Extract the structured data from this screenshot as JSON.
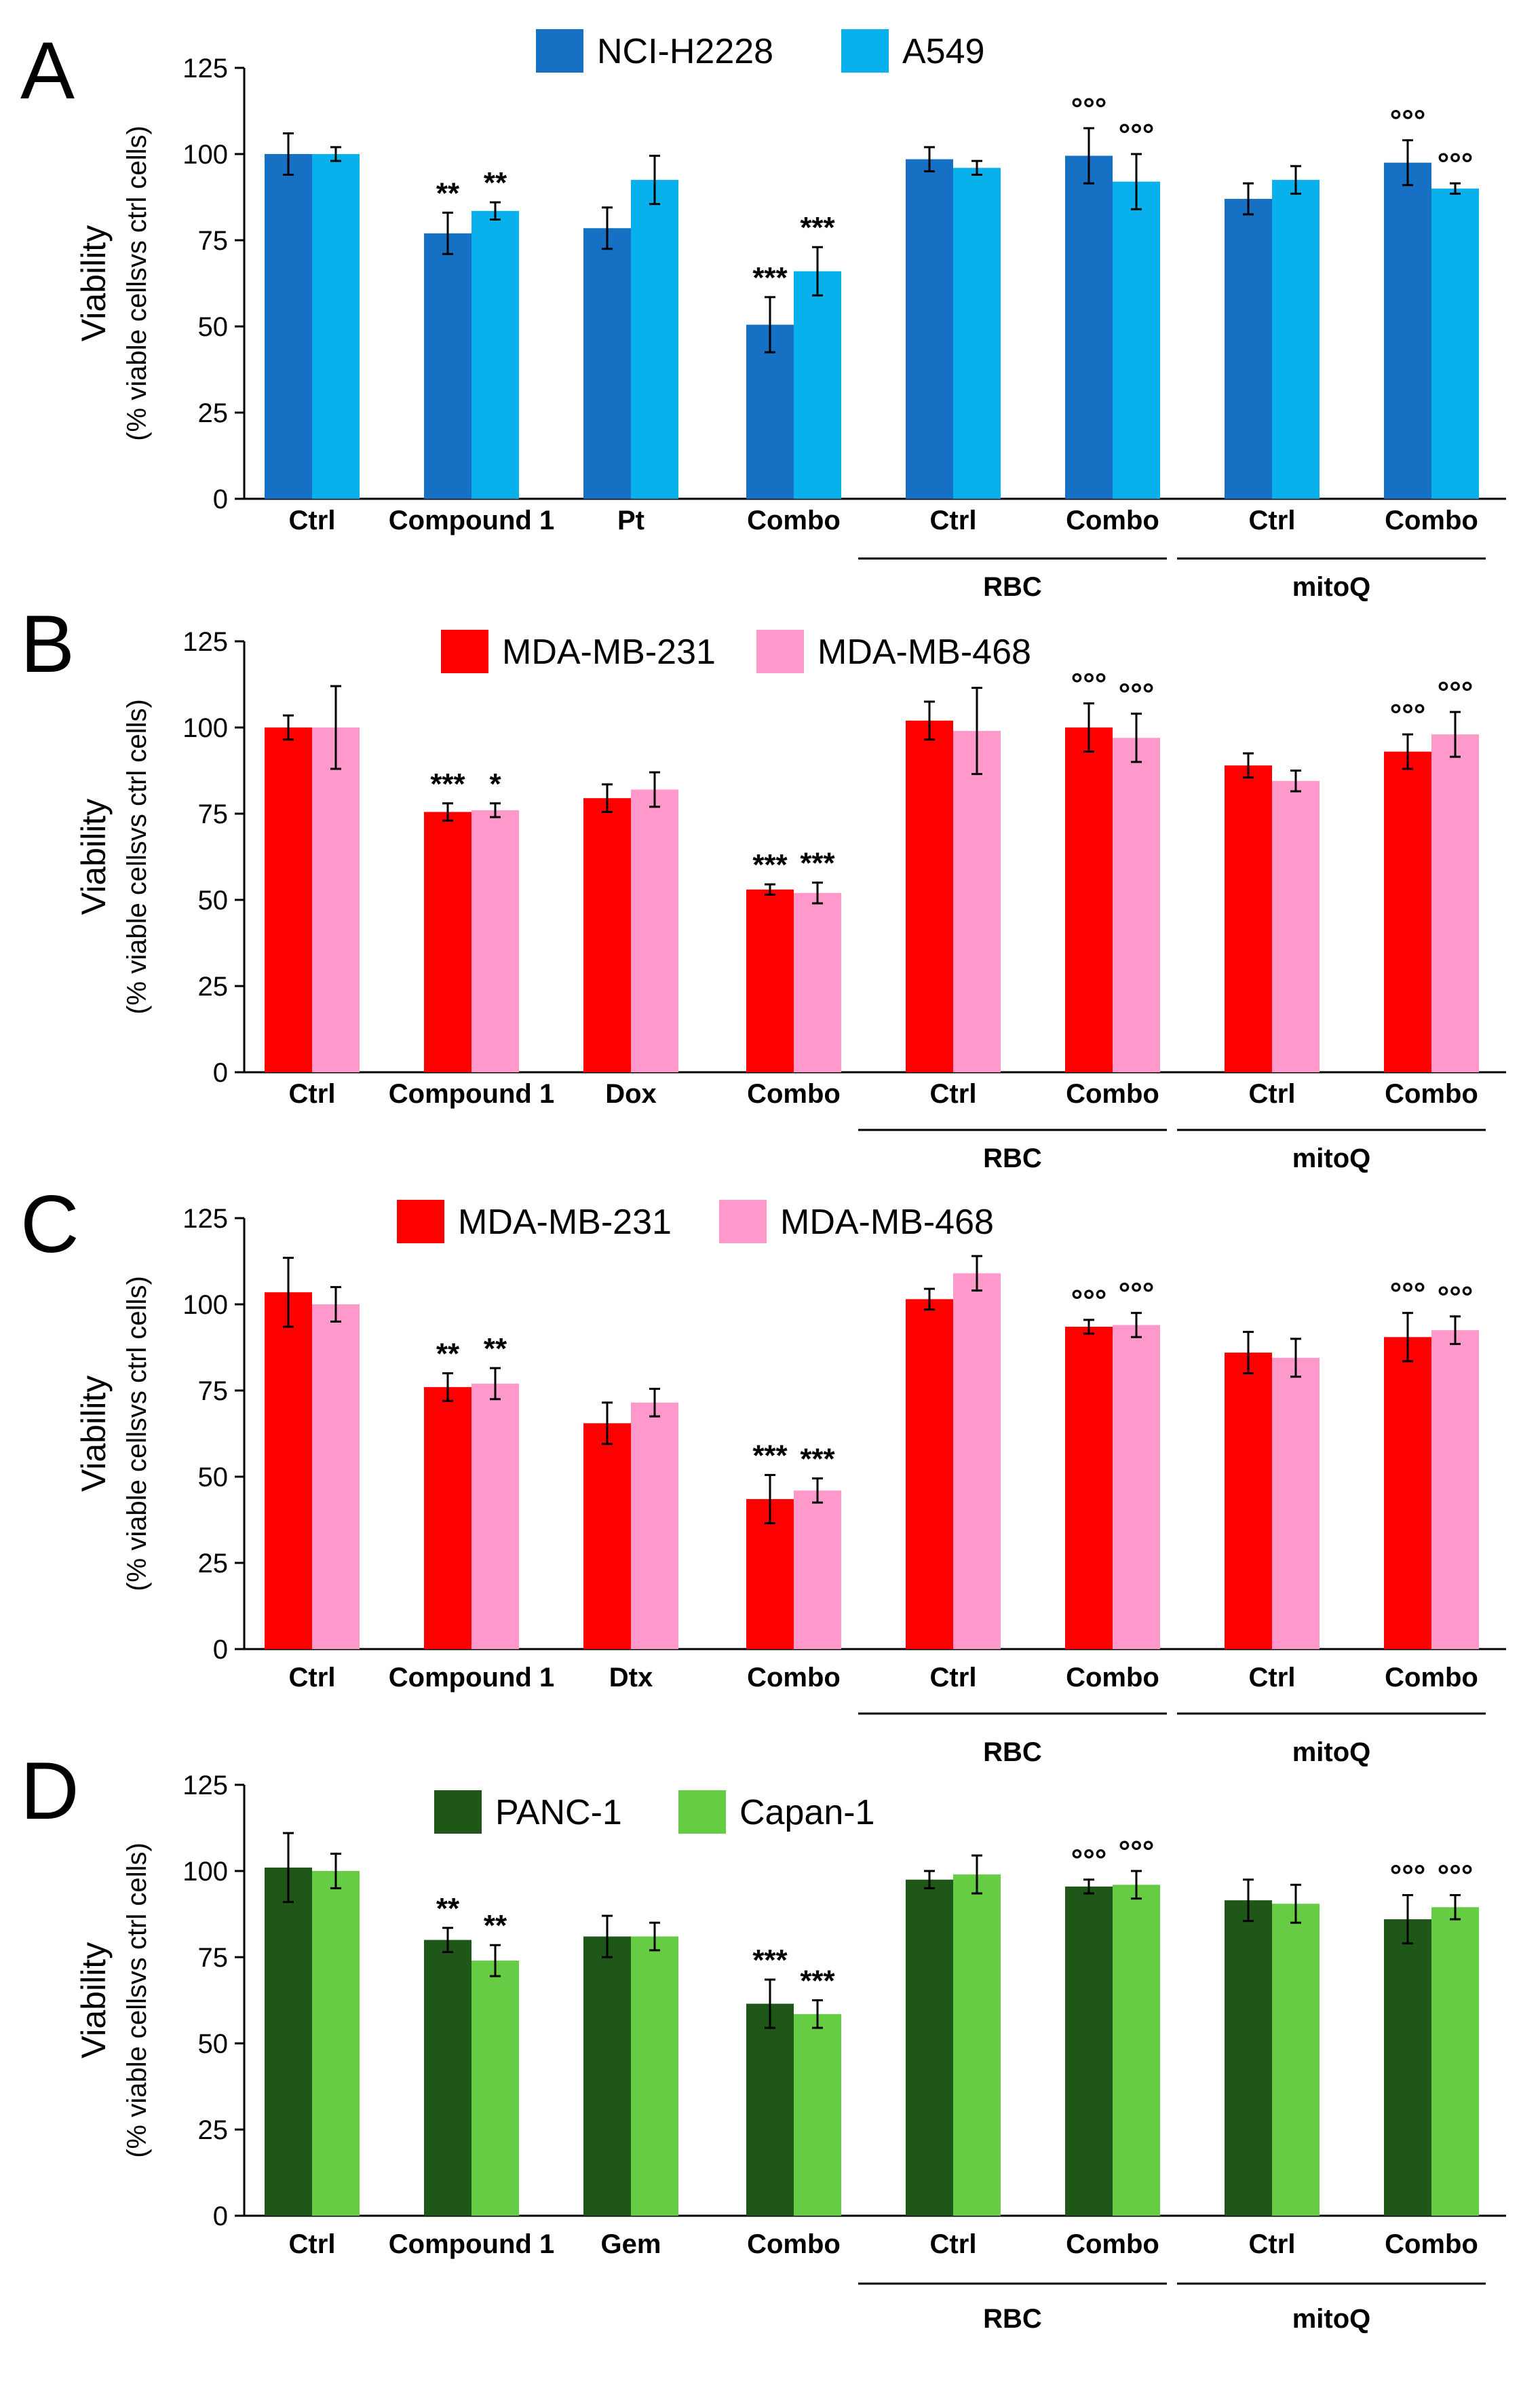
{
  "chart_data": [
    {
      "type": "bar",
      "panel": "A",
      "title": "",
      "ylabel": "Viability",
      "ylabel_sub": "(% viable cellsvs ctrl cells)",
      "ylim": [
        0,
        125
      ],
      "yticks": [
        "0",
        "25",
        "50",
        "75",
        "100",
        "125"
      ],
      "categories": [
        "Ctrl",
        "Compound 1",
        "Pt",
        "Combo",
        "Ctrl",
        "Combo",
        "Ctrl",
        "Combo"
      ],
      "groups": [
        {
          "label": "RBC",
          "from": 4,
          "to": 5
        },
        {
          "label": "mitoQ",
          "from": 6,
          "to": 7
        }
      ],
      "legend_position": "top-center",
      "series": [
        {
          "name": "NCI-H2228",
          "color": "#1670C4",
          "values": [
            100,
            77,
            78.5,
            50.5,
            98.5,
            99.5,
            87,
            97.5
          ],
          "errors": [
            6,
            6,
            6,
            8,
            3.5,
            8,
            4.5,
            6.5
          ],
          "sig": [
            "",
            "**",
            "",
            "***",
            "",
            "°°°",
            "",
            "°°°"
          ]
        },
        {
          "name": "A549",
          "color": "#08B1EC",
          "values": [
            100,
            83.5,
            92.5,
            66,
            96,
            92,
            92.5,
            90
          ],
          "errors": [
            2,
            2.5,
            7,
            7,
            2,
            8,
            4,
            1.5
          ],
          "sig": [
            "",
            "**",
            "",
            "***",
            "",
            "°°°",
            "",
            "°°°"
          ]
        }
      ]
    },
    {
      "type": "bar",
      "panel": "B",
      "title": "",
      "ylabel": "Viability",
      "ylabel_sub": "(% viable cellsvs ctrl cells)",
      "ylim": [
        0,
        125
      ],
      "yticks": [
        "0",
        "25",
        "50",
        "75",
        "100",
        "125"
      ],
      "categories": [
        "Ctrl",
        "Compound 1",
        "Dox",
        "Combo",
        "Ctrl",
        "Combo",
        "Ctrl",
        "Combo"
      ],
      "groups": [
        {
          "label": "RBC",
          "from": 4,
          "to": 5
        },
        {
          "label": "mitoQ",
          "from": 6,
          "to": 7
        }
      ],
      "legend_position": "top-center",
      "series": [
        {
          "name": "MDA-MB-231",
          "color": "#FF0000",
          "values": [
            100,
            75.5,
            79.5,
            53,
            102,
            100,
            89,
            93
          ],
          "errors": [
            3.5,
            2.5,
            4,
            1.5,
            5.5,
            7,
            3.5,
            5
          ],
          "sig": [
            "",
            "***",
            "",
            "***",
            "",
            "°°°",
            "",
            "°°°"
          ]
        },
        {
          "name": "MDA-MB-468",
          "color": "#FF99CC",
          "values": [
            100,
            76,
            82,
            52,
            99,
            97,
            84.5,
            98
          ],
          "errors": [
            12,
            2,
            5,
            3,
            12.5,
            7,
            3,
            6.5
          ],
          "sig": [
            "",
            "*",
            "",
            "***",
            "",
            "°°°",
            "",
            "°°°"
          ]
        }
      ]
    },
    {
      "type": "bar",
      "panel": "C",
      "title": "",
      "ylabel": "Viability",
      "ylabel_sub": "(% viable cellsvs ctrl cells)",
      "ylim": [
        0,
        125
      ],
      "yticks": [
        "0",
        "25",
        "50",
        "75",
        "100",
        "125"
      ],
      "categories": [
        "Ctrl",
        "Compound 1",
        "Dtx",
        "Combo",
        "Ctrl",
        "Combo",
        "Ctrl",
        "Combo"
      ],
      "groups": [
        {
          "label": "RBC",
          "from": 4,
          "to": 5
        },
        {
          "label": "mitoQ",
          "from": 6,
          "to": 7
        }
      ],
      "legend_position": "top-center",
      "series": [
        {
          "name": "MDA-MB-231",
          "color": "#FF0000",
          "values": [
            103.5,
            76,
            65.5,
            43.5,
            101.5,
            93.5,
            86,
            90.5
          ],
          "errors": [
            10,
            4,
            6,
            7,
            3,
            2,
            6,
            7
          ],
          "sig": [
            "",
            "**",
            "",
            "***",
            "",
            "°°°",
            "",
            "°°°"
          ]
        },
        {
          "name": "MDA-MB-468",
          "color": "#FF99CC",
          "values": [
            100,
            77,
            71.5,
            46,
            109,
            94,
            84.5,
            92.5
          ],
          "errors": [
            5,
            4.5,
            4,
            3.5,
            5,
            3.5,
            5.5,
            4
          ],
          "sig": [
            "",
            "**",
            "",
            "***",
            "",
            "°°°",
            "",
            "°°°"
          ]
        }
      ]
    },
    {
      "type": "bar",
      "panel": "D",
      "title": "",
      "ylabel": "Viability",
      "ylabel_sub": "(% viable cellsvs ctrl cells)",
      "ylim": [
        0,
        125
      ],
      "yticks": [
        "0",
        "25",
        "50",
        "75",
        "100",
        "125"
      ],
      "categories": [
        "Ctrl",
        "Compound 1",
        "Gem",
        "Combo",
        "Ctrl",
        "Combo",
        "Ctrl",
        "Combo"
      ],
      "groups": [
        {
          "label": "RBC",
          "from": 4,
          "to": 5
        },
        {
          "label": "mitoQ",
          "from": 6,
          "to": 7
        }
      ],
      "legend_position": "top-center",
      "series": [
        {
          "name": "PANC-1",
          "color": "#1E5718",
          "values": [
            101,
            80,
            81,
            61.5,
            97.5,
            95.5,
            91.5,
            86
          ],
          "errors": [
            10,
            3.5,
            6,
            7,
            2.5,
            2,
            6,
            7
          ],
          "sig": [
            "",
            "**",
            "",
            "***",
            "",
            "°°°",
            "",
            "°°°"
          ]
        },
        {
          "name": "Capan-1",
          "color": "#66CC44",
          "values": [
            100,
            74,
            81,
            58.5,
            99,
            96,
            90.5,
            89.5
          ],
          "errors": [
            5,
            4.5,
            4,
            4,
            5.5,
            4,
            5.5,
            3.5
          ],
          "sig": [
            "",
            "**",
            "",
            "***",
            "",
            "°°°",
            "",
            "°°°"
          ]
        }
      ]
    }
  ]
}
